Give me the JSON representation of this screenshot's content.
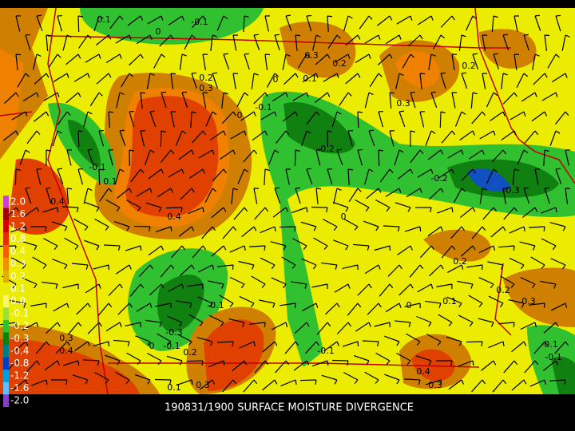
{
  "title": "190831/1900 SURFACE MOISTURE DIVERGENCE",
  "legend_labels": [
    "2.0",
    "1.6",
    "1.2",
    "0.8",
    "0.4",
    "0.3",
    "0.2",
    "0.1",
    "0.0",
    "-0.1",
    "-0.2",
    "-0.3",
    "-0.4",
    "-0.8",
    "-1.2",
    "-1.6",
    "-2.0"
  ],
  "contour_labels": [
    "0.1",
    "-0.1",
    "0",
    "0.3",
    "0.2",
    "0.2",
    "0.2",
    "0.3",
    "0",
    "0.1",
    "0.3",
    "-0.1",
    "0",
    "-0.2",
    "-0.1",
    "0.1",
    "-0.2",
    "-0.3",
    "0.4",
    "0.4",
    "0",
    "0.2",
    "0.2",
    "0.3",
    "0.1",
    "-0.1",
    "0",
    "-0.3",
    "0",
    "-0.1",
    "0.2",
    "-0.1",
    "0.3",
    "0.4",
    "-0.1",
    "-0.1",
    "0.4",
    "0.3",
    "0.1",
    "0.3"
  ]
}
